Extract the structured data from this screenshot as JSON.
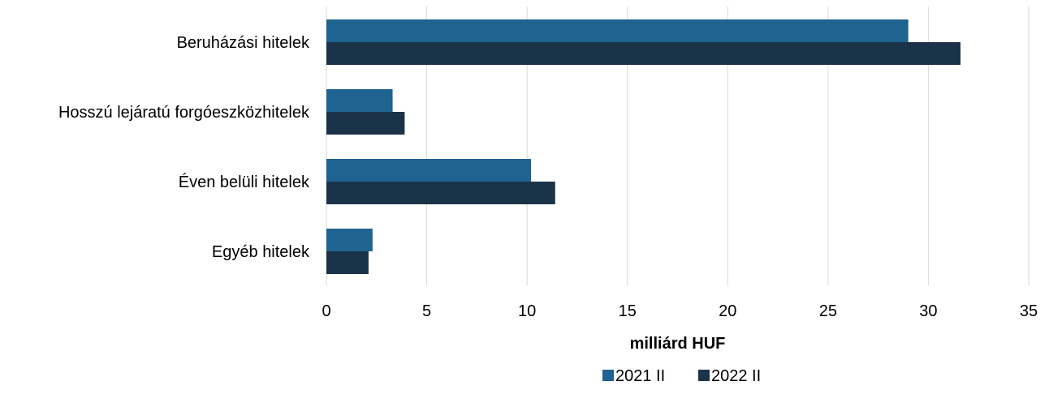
{
  "chart_data": {
    "type": "bar",
    "orientation": "horizontal",
    "title": "",
    "xlabel": "milliárd HUF",
    "ylabel": "",
    "categories": [
      "Beruházási hitelek",
      "Hosszú lejáratú forgóeszközhitelek",
      "Éven belüli hitelek",
      "Egyéb hitelek"
    ],
    "series": [
      {
        "name": "2021 II",
        "color": "#1f6391",
        "values": [
          29.0,
          3.3,
          10.2,
          2.3
        ]
      },
      {
        "name": "2022 II",
        "color": "#1b3349",
        "values": [
          31.6,
          3.9,
          11.4,
          2.1
        ]
      }
    ],
    "xlim": [
      0,
      35
    ],
    "x_ticks": [
      "0",
      "5",
      "10",
      "15",
      "20",
      "25",
      "30",
      "35"
    ],
    "grid": "vertical",
    "legend_position": "bottom"
  }
}
